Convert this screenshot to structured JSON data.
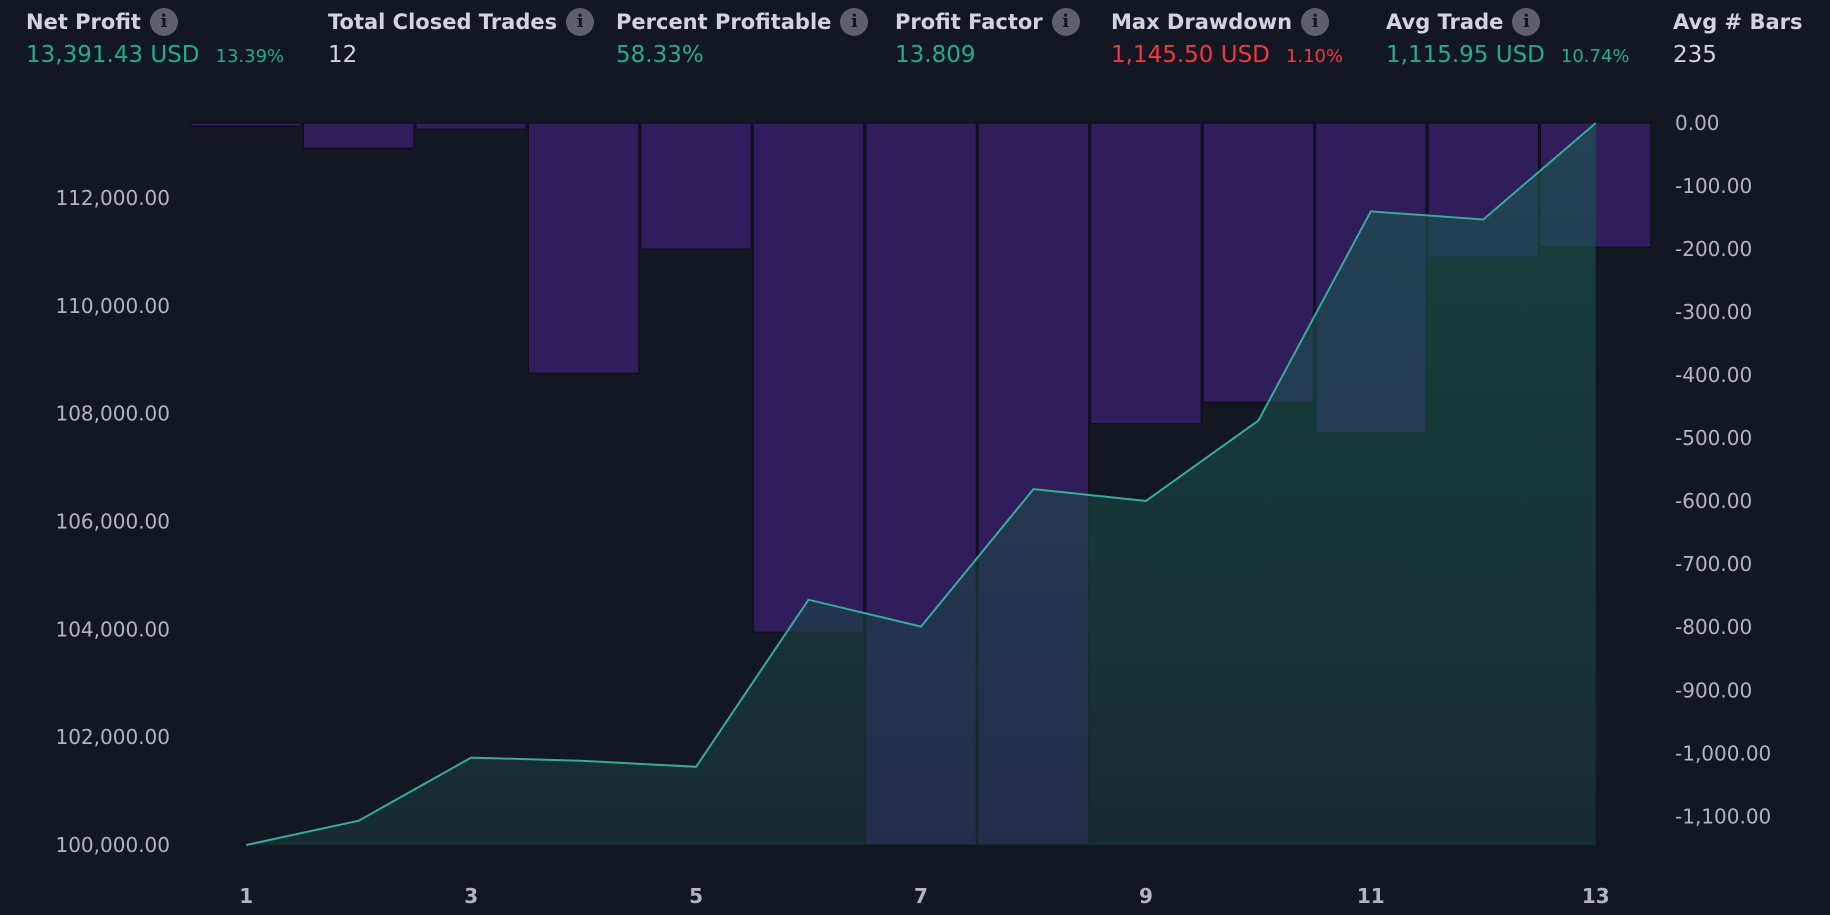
{
  "metrics": [
    {
      "label": "Net Profit",
      "value": "13,391.43 USD",
      "pct": "13.39%",
      "color": "#22ab94"
    },
    {
      "label": "Total Closed Trades",
      "value": "12",
      "pct": "",
      "color": "#d1d4dc"
    },
    {
      "label": "Percent Profitable",
      "value": "58.33%",
      "pct": "",
      "color": "#22ab94"
    },
    {
      "label": "Profit Factor",
      "value": "13.809",
      "pct": "",
      "color": "#22ab94"
    },
    {
      "label": "Max Drawdown",
      "value": "1,145.50 USD",
      "pct": "1.10%",
      "color": "#f23645"
    },
    {
      "label": "Avg Trade",
      "value": "1,115.95 USD",
      "pct": "10.74%",
      "color": "#22ab94"
    },
    {
      "label": "Avg # Bars",
      "value": "235",
      "pct": "",
      "color": "#d1d4dc"
    }
  ],
  "info_icon": "info-icon",
  "chart_data": {
    "type": "line",
    "x": [
      1,
      2,
      3,
      4,
      5,
      6,
      7,
      8,
      9,
      10,
      11,
      12,
      13
    ],
    "xticks": [
      "1",
      "3",
      "5",
      "7",
      "9",
      "11",
      "13"
    ],
    "xlim": [
      0.5,
      13.5
    ],
    "series": [
      {
        "axis": "left",
        "type": "area",
        "values": [
          100000,
          100450,
          101620,
          101560,
          101450,
          104550,
          104050,
          106600,
          106380,
          107870,
          111750,
          111600,
          113390
        ],
        "color": "#3aa89a"
      },
      {
        "axis": "right",
        "type": "bar",
        "values": [
          -5,
          -40,
          -10,
          -397,
          -200,
          -808,
          -1145.5,
          -1144,
          -477,
          -443,
          -491,
          -213,
          -197
        ],
        "color": "#2f1d5c"
      }
    ],
    "yaxis_left": {
      "ticks": [
        "100,000.00",
        "102,000.00",
        "104,000.00",
        "106,000.00",
        "108,000.00",
        "110,000.00",
        "112,000.00"
      ],
      "tick_values": [
        100000,
        102000,
        104000,
        106000,
        108000,
        110000,
        112000
      ],
      "ylim": [
        100000,
        113390
      ]
    },
    "yaxis_right": {
      "ticks": [
        "0.00",
        "-100.00",
        "-200.00",
        "-300.00",
        "-400.00",
        "-500.00",
        "-600.00",
        "-700.00",
        "-800.00",
        "-900.00",
        "-1,000.00",
        "-1,100.00"
      ],
      "tick_values": [
        0,
        -100,
        -200,
        -300,
        -400,
        -500,
        -600,
        -700,
        -800,
        -900,
        -1000,
        -1100
      ],
      "ylim": [
        -1145.5,
        0
      ]
    },
    "grid": false
  }
}
